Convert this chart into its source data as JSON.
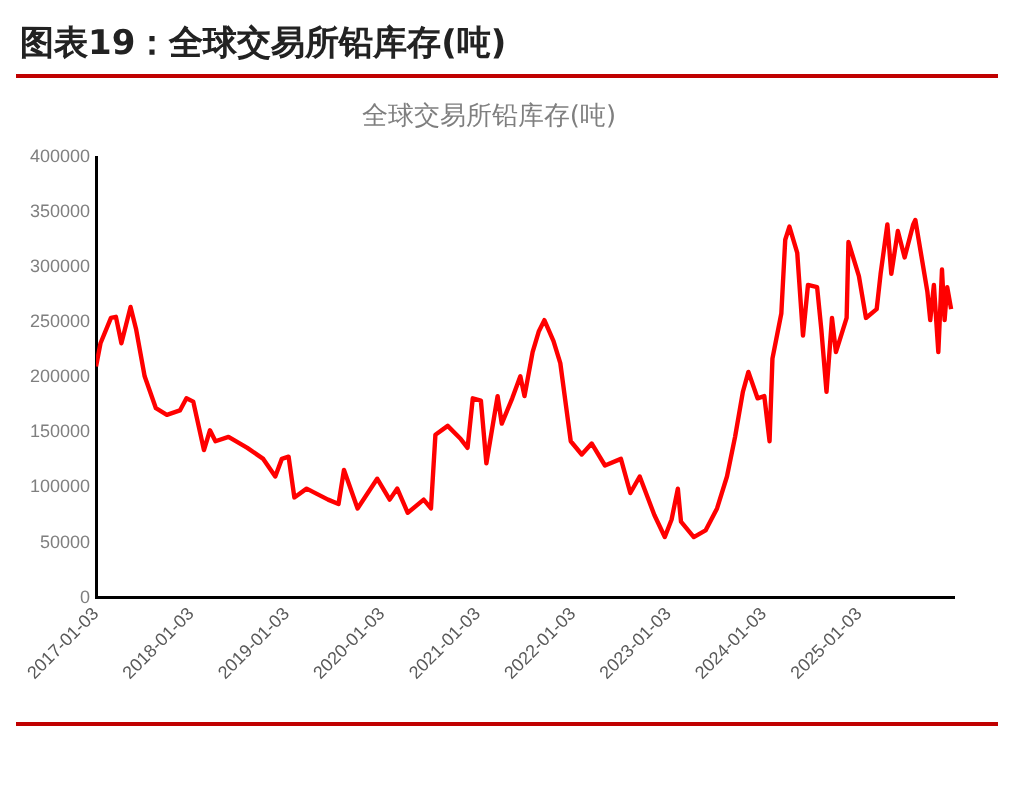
{
  "chart_data": {
    "type": "line",
    "title": "图表19：全球交易所铅库存(吨)",
    "subtitle": "全球交易所铅库存(吨)",
    "x": [
      "2017-01-03",
      "2017-01-20",
      "2017-03-01",
      "2017-03-20",
      "2017-04-10",
      "2017-05-15",
      "2017-06-05",
      "2017-07-08",
      "2017-08-20",
      "2017-10-01",
      "2017-11-20",
      "2017-12-15",
      "2018-01-10",
      "2018-02-20",
      "2018-03-15",
      "2018-04-05",
      "2018-05-25",
      "2018-08-05",
      "2018-10-05",
      "2018-11-20",
      "2018-12-15",
      "2019-01-10",
      "2019-02-01",
      "2019-03-20",
      "2019-06-10",
      "2019-07-20",
      "2019-08-10",
      "2019-10-01",
      "2019-12-15",
      "2020-02-01",
      "2020-03-01",
      "2020-04-10",
      "2020-06-10",
      "2020-07-08",
      "2020-07-25",
      "2020-09-10",
      "2020-10-30",
      "2020-11-25",
      "2020-12-15",
      "2021-01-15",
      "2021-02-05",
      "2021-03-20",
      "2021-04-05",
      "2021-05-15",
      "2021-06-15",
      "2021-07-01",
      "2021-08-01",
      "2021-08-25",
      "2021-09-15",
      "2021-10-20",
      "2021-11-15",
      "2021-12-25",
      "2022-02-05",
      "2022-03-15",
      "2022-05-05",
      "2022-07-05",
      "2022-08-10",
      "2022-09-15",
      "2022-11-10",
      "2022-12-20",
      "2023-01-15",
      "2023-02-08",
      "2023-02-20",
      "2023-04-10",
      "2023-05-25",
      "2023-07-08",
      "2023-08-15",
      "2023-09-15",
      "2023-10-15",
      "2023-11-05",
      "2023-12-10",
      "2024-01-05",
      "2024-01-25",
      "2024-02-05",
      "2024-03-10",
      "2024-03-25",
      "2024-04-10",
      "2024-05-10",
      "2024-06-01",
      "2024-06-20",
      "2024-07-25",
      "2024-08-10",
      "2024-08-30",
      "2024-09-20",
      "2024-10-05",
      "2024-11-15",
      "2024-11-22",
      "2025-01-01",
      "2025-01-28",
      "2025-03-10",
      "2025-03-25",
      "2025-04-20",
      "2025-05-05",
      "2025-05-30",
      "2025-06-25",
      "2025-07-28",
      "2025-08-05",
      "2025-09-20",
      "2025-10-01",
      "2025-10-15",
      "2025-11-01",
      "2025-11-15",
      "2025-11-25",
      "2025-12-05",
      "2025-12-20"
    ],
    "series": [
      {
        "color": "#ff0000",
        "values": [
          210000,
          231000,
          254000,
          255000,
          231000,
          264000,
          244000,
          201000,
          172000,
          166000,
          170000,
          181000,
          178000,
          134000,
          152000,
          142000,
          146000,
          136000,
          126000,
          110000,
          126000,
          128000,
          91000,
          99000,
          89000,
          85000,
          116000,
          81000,
          108000,
          89000,
          99000,
          77000,
          89000,
          81000,
          148000,
          156000,
          144000,
          136000,
          181000,
          179000,
          122000,
          183000,
          158000,
          181000,
          201000,
          183000,
          223000,
          242000,
          252000,
          233000,
          213000,
          142000,
          130000,
          140000,
          120000,
          126000,
          95000,
          110000,
          75000,
          55000,
          71000,
          99000,
          69000,
          55000,
          61000,
          81000,
          110000,
          146000,
          187000,
          205000,
          181000,
          183000,
          142000,
          217000,
          258000,
          325000,
          337000,
          313000,
          238000,
          284000,
          282000,
          244000,
          187000,
          254000,
          223000,
          254000,
          323000,
          292000,
          254000,
          262000,
          294000,
          339000,
          294000,
          333000,
          309000,
          339000,
          343000,
          278000,
          252000,
          284000,
          223000,
          298000,
          252000,
          282000,
          262000
        ]
      }
    ],
    "xlim": [
      "2017-01-03",
      "2025-12-31"
    ],
    "xticks": [
      "2017-01-03",
      "2018-01-03",
      "2019-01-03",
      "2020-01-03",
      "2021-01-03",
      "2022-01-03",
      "2023-01-03",
      "2024-01-03",
      "2025-01-03"
    ],
    "ylim": [
      0,
      400000
    ],
    "yticks": [
      0,
      50000,
      100000,
      150000,
      200000,
      250000,
      300000,
      350000,
      400000
    ],
    "grid": false,
    "legend": false,
    "marker": "none",
    "line_style": "solid"
  }
}
